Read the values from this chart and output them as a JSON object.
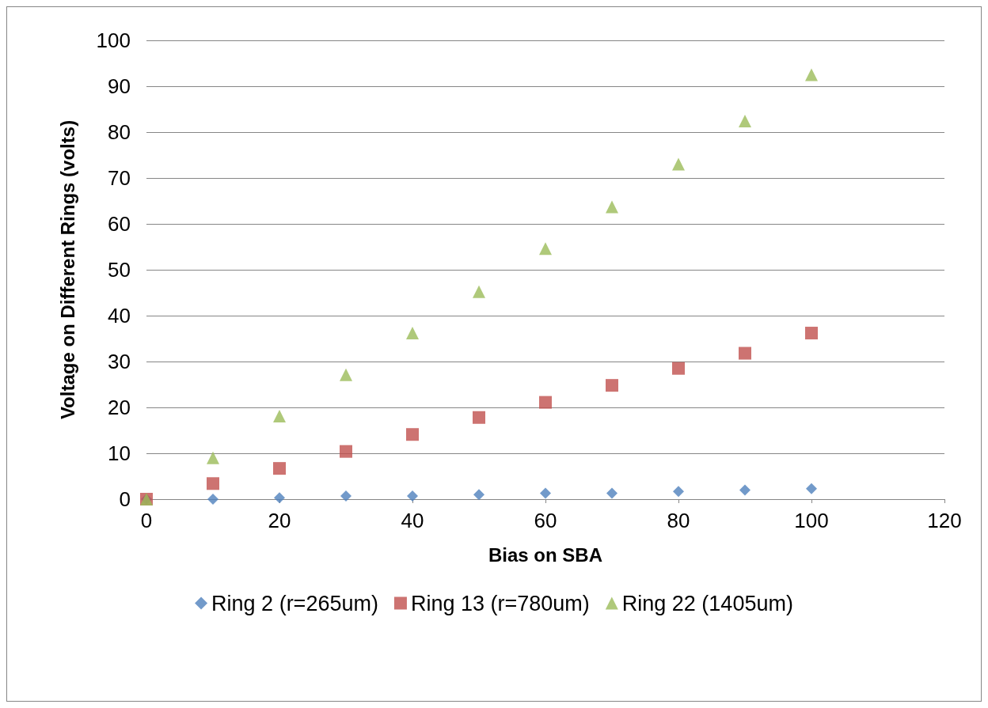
{
  "chart_data": {
    "type": "scatter",
    "xlabel": "Bias on SBA",
    "ylabel": "Voltage on Different Rings (volts)",
    "x": [
      0,
      10,
      20,
      30,
      40,
      50,
      60,
      70,
      80,
      90,
      100
    ],
    "series": [
      {
        "name": "Ring 2 (r=265um)",
        "color": "#4f81bd",
        "marker": "diamond",
        "values": [
          0,
          0,
          0.3,
          0.7,
          0.7,
          1.0,
          1.3,
          1.3,
          1.7,
          2.0,
          2.3
        ]
      },
      {
        "name": "Ring 13 (r=780um)",
        "color": "#c0504d",
        "marker": "square",
        "values": [
          0,
          3.4,
          6.7,
          10.4,
          14.1,
          17.8,
          21.1,
          24.8,
          28.5,
          31.8,
          36.2
        ]
      },
      {
        "name": "Ring 22 (1405um)",
        "color": "#9bbb59",
        "marker": "triangle",
        "values": [
          0,
          9.0,
          18.1,
          27.1,
          36.2,
          45.2,
          54.6,
          63.7,
          73.0,
          82.4,
          92.5
        ]
      }
    ],
    "xlim": [
      0,
      120
    ],
    "xticks": [
      0,
      20,
      40,
      60,
      80,
      100,
      120
    ],
    "ylim": [
      0,
      100
    ],
    "yticks": [
      0,
      10,
      20,
      30,
      40,
      50,
      60,
      70,
      80,
      90,
      100
    ],
    "grid": "y",
    "legend": "bottom"
  }
}
